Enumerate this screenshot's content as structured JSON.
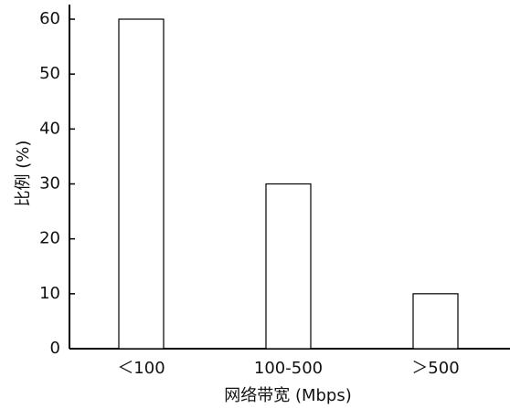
{
  "chart_data": {
    "type": "bar",
    "categories": [
      "＜100",
      "100-500",
      "＞500"
    ],
    "values": [
      60,
      30,
      10
    ],
    "color": "#ffffff",
    "edgecolor": "#000000",
    "xlabel": "网络带宽 (Mbps)",
    "ylabel": "比例 (%)",
    "ylim": [
      0,
      60
    ],
    "yticks": [
      0,
      10,
      20,
      30,
      40,
      50,
      60
    ],
    "grid": false
  }
}
